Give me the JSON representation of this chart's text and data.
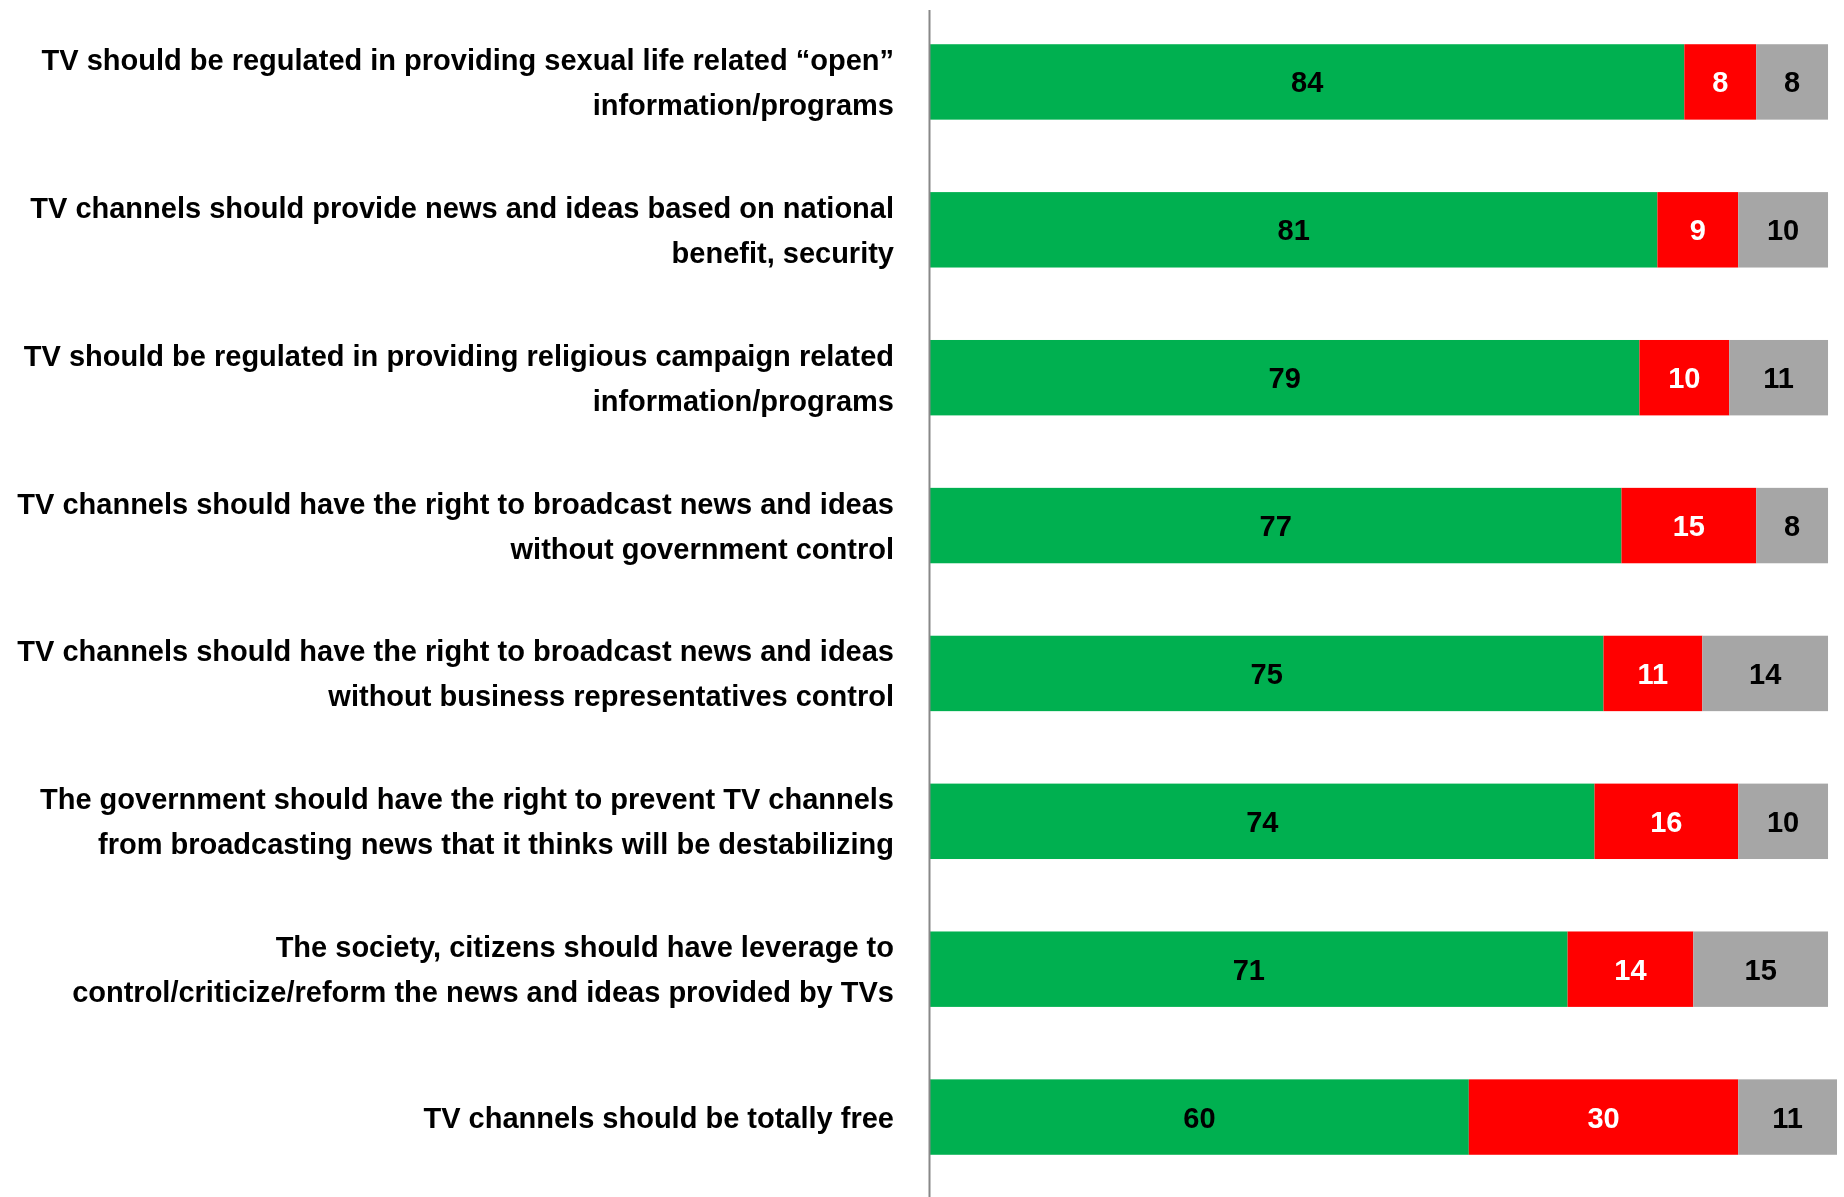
{
  "chart_data": {
    "type": "bar",
    "orientation": "horizontal",
    "stacked": true,
    "data_labels": true,
    "xlim": [
      0,
      101
    ],
    "tick_labels": "y",
    "categories": [
      "TV should be regulated in providing sexual life related “open” information/programs",
      "TV channels should provide news and ideas based on national benefit, security",
      "TV should be regulated in providing religious campaign related information/programs",
      "TV channels should have the right to broadcast news and ideas without government control",
      "TV channels should have the right to broadcast news and ideas without business representatives control",
      "The government should have the right to prevent TV channels from broadcasting news that it thinks will be destabilizing",
      "The society, citizens should have leverage to control/criticize/reform the news and ideas provided by TVs",
      "TV channels should be totally free"
    ],
    "series": [
      {
        "color": "#00b050",
        "values": [
          84,
          81,
          79,
          77,
          75,
          74,
          71,
          60
        ]
      },
      {
        "color": "#ff0000",
        "values": [
          8,
          9,
          10,
          15,
          11,
          16,
          14,
          30
        ]
      },
      {
        "color": "#a6a6a6",
        "values": [
          8,
          10,
          11,
          8,
          14,
          10,
          15,
          11
        ]
      }
    ]
  }
}
